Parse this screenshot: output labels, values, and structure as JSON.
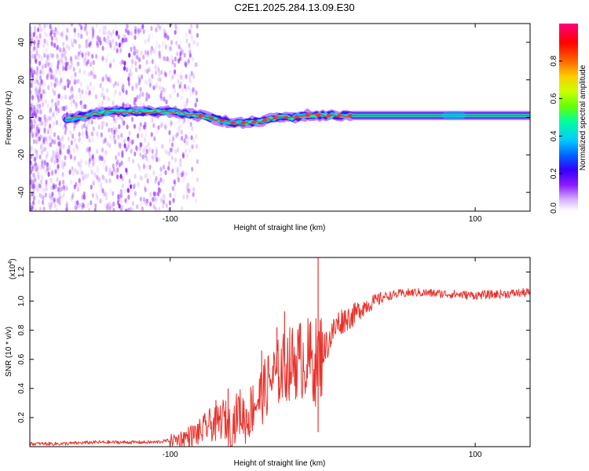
{
  "figure": {
    "title": "C2E1.2025.284.13.09.E30",
    "colors": {
      "line": "#e8322b",
      "axis": "#000000",
      "background": "#ffffff",
      "ridge": "#e53935",
      "spectral_scale": [
        "#ffffff",
        "#d9b3ff",
        "#8c1aff",
        "#3300ff",
        "#0066ff",
        "#00ccff",
        "#00ff99",
        "#66ff00",
        "#ccff00",
        "#ffcc00",
        "#ff6600",
        "#ff0000",
        "#ff0080"
      ]
    }
  },
  "chart_data": [
    {
      "type": "heatmap",
      "name": "spectrogram",
      "xlabel": "Height of straight line (km)",
      "ylabel": "Frequency (Hz)",
      "xlim": [
        -192,
        136
      ],
      "ylim": [
        -50,
        50
      ],
      "xticks": [
        -100,
        100
      ],
      "yticks": [
        -40,
        -20,
        0,
        20,
        40
      ],
      "colorbar": {
        "label": "Normalized spectral amplitude",
        "range": [
          0,
          1
        ],
        "ticks": [
          0.2,
          0.4,
          0.6,
          0.8
        ],
        "extra_tick_label": "0.0"
      },
      "ridge": [
        {
          "x": -168,
          "f": -1
        },
        {
          "x": -160,
          "f": 0
        },
        {
          "x": -150,
          "f": 2
        },
        {
          "x": -140,
          "f": 3
        },
        {
          "x": -130,
          "f": 3
        },
        {
          "x": -120,
          "f": 3
        },
        {
          "x": -110,
          "f": 3
        },
        {
          "x": -100,
          "f": 3
        },
        {
          "x": -90,
          "f": 2
        },
        {
          "x": -80,
          "f": 1
        },
        {
          "x": -70,
          "f": -1
        },
        {
          "x": -60,
          "f": -3
        },
        {
          "x": -50,
          "f": -3
        },
        {
          "x": -40,
          "f": -2
        },
        {
          "x": -30,
          "f": 0
        },
        {
          "x": -20,
          "f": 0
        },
        {
          "x": -10,
          "f": 1
        },
        {
          "x": 0,
          "f": 1
        },
        {
          "x": 10,
          "f": 1
        },
        {
          "x": 20,
          "f": 1
        },
        {
          "x": 30,
          "f": 1
        },
        {
          "x": 50,
          "f": 1
        },
        {
          "x": 80,
          "f": 1
        },
        {
          "x": 100,
          "f": 1
        },
        {
          "x": 136,
          "f": 1
        }
      ]
    },
    {
      "type": "line",
      "name": "snr",
      "xlabel": "Height of straight line (km)",
      "ylabel": "SNR (10 * v/v)",
      "y_multiplier_label": "(x10",
      "y_multiplier_exp": "4",
      "y_multiplier_close": ")",
      "xlim": [
        -192,
        136
      ],
      "ylim": [
        0,
        1.3
      ],
      "xticks": [
        -100,
        100
      ],
      "yticks": [
        0.2,
        0.4,
        0.6,
        0.8,
        1.0,
        1.2
      ],
      "series": [
        {
          "name": "SNR",
          "x": [
            -192,
            -170,
            -150,
            -130,
            -110,
            -95,
            -85,
            -80,
            -75,
            -70,
            -65,
            -60,
            -55,
            -50,
            -45,
            -40,
            -35,
            -30,
            -25,
            -20,
            -15,
            -10,
            -5,
            0,
            5,
            10,
            15,
            20,
            25,
            30,
            35,
            40,
            50,
            60,
            80,
            100,
            120,
            136
          ],
          "y": [
            0.02,
            0.02,
            0.03,
            0.03,
            0.03,
            0.05,
            0.08,
            0.1,
            0.15,
            0.15,
            0.2,
            0.12,
            0.25,
            0.18,
            0.3,
            0.35,
            0.45,
            0.5,
            0.55,
            0.58,
            0.6,
            0.6,
            0.58,
            0.65,
            0.75,
            0.85,
            0.88,
            0.9,
            0.95,
            0.98,
            1.0,
            1.03,
            1.05,
            1.06,
            1.05,
            1.04,
            1.05,
            1.06
          ],
          "spikes": [
            {
              "x": -3,
              "y": 1.3
            },
            {
              "x": -3,
              "y": 0.1
            },
            {
              "x": -25,
              "y": 0.93
            },
            {
              "x": -40,
              "y": 0.66
            },
            {
              "x": -30,
              "y": 0.82
            },
            {
              "x": -15,
              "y": 0.78
            },
            {
              "x": -62,
              "y": 0.4
            },
            {
              "x": -70,
              "y": 0.32
            }
          ]
        }
      ]
    }
  ]
}
